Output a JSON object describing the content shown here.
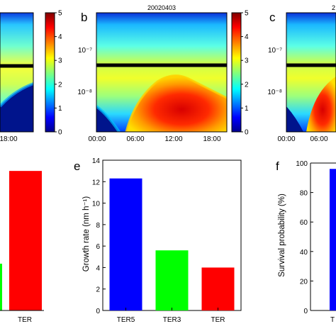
{
  "chart_data": [
    {
      "panel": "",
      "type": "heatmap",
      "title": "",
      "x_ticks": [
        "18:00"
      ],
      "colorbar_ticks": [
        "0",
        "1",
        "2",
        "3",
        "4",
        "5"
      ],
      "colorbar_range": [
        0,
        5
      ],
      "reference_line": "horizontal black line"
    },
    {
      "panel": "b",
      "type": "heatmap",
      "title": "20020403",
      "x_ticks": [
        "00:00",
        "06:00",
        "12:00",
        "18:00"
      ],
      "y_ticks": [
        "10⁻⁷",
        "10⁻⁸"
      ],
      "y_scale": "log",
      "colorbar_ticks": [
        "0",
        "1",
        "2",
        "3",
        "4",
        "5"
      ],
      "colorbar_range": [
        0,
        5
      ]
    },
    {
      "panel": "c",
      "type": "heatmap",
      "title": "2",
      "x_ticks": [
        "00:00",
        "06:00"
      ],
      "y_ticks": [
        "10⁻⁷",
        "10⁻⁸"
      ],
      "y_scale": "log"
    },
    {
      "panel": "",
      "type": "bar",
      "categories": [
        "TER"
      ],
      "values": [
        13
      ],
      "colors": [
        "#ff0000"
      ],
      "partial": true
    },
    {
      "panel": "e",
      "type": "bar",
      "categories": [
        "TER5",
        "TER3",
        "TER"
      ],
      "values": [
        12.3,
        5.6,
        4.0
      ],
      "colors": [
        "#0000ff",
        "#00ff00",
        "#ff0000"
      ],
      "ylabel": "Growth rate (nm h⁻¹)",
      "ylim": [
        0,
        14
      ],
      "y_ticks": [
        "0",
        "2",
        "4",
        "6",
        "8",
        "10",
        "12",
        "14"
      ]
    },
    {
      "panel": "f",
      "type": "bar",
      "categories": [
        "T"
      ],
      "values": [
        96
      ],
      "colors": [
        "#0000ff"
      ],
      "ylabel": "Survival probability (%)",
      "ylim": [
        0,
        100
      ],
      "y_ticks": [
        "0",
        "20",
        "40",
        "60",
        "80",
        "100"
      ]
    }
  ]
}
